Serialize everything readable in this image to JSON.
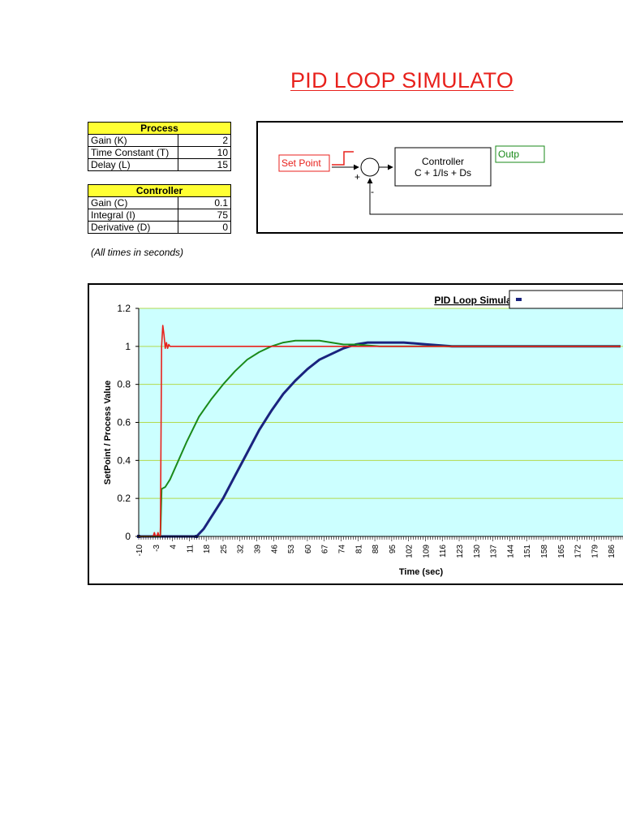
{
  "page": {
    "title": "PID LOOP SIMULATO",
    "note": "(All times in seconds)"
  },
  "process_table": {
    "header": "Process",
    "rows": [
      {
        "label": "Gain (K)",
        "value": "2"
      },
      {
        "label": "Time Constant (T)",
        "value": "10"
      },
      {
        "label": "Delay (L)",
        "value": "15"
      }
    ]
  },
  "controller_table": {
    "header": "Controller",
    "rows": [
      {
        "label": "Gain (C)",
        "value": "0.1"
      },
      {
        "label": "Integral (I)",
        "value": "75"
      },
      {
        "label": "Derivative (D)",
        "value": "0"
      }
    ]
  },
  "diagram": {
    "setpoint_label": "Set Point",
    "controller_title": "Controller",
    "controller_formula": "C + 1/Is + Ds",
    "output_label": "Outp",
    "plus_sign": "+",
    "minus_sign": "-",
    "colors": {
      "setpoint": "#e8211c",
      "output": "#1a8a1a"
    }
  },
  "chart_data": {
    "type": "line",
    "title": "PID Loop Simulation",
    "xlabel": "Time (sec)",
    "ylabel": "SetPoint / Process Value",
    "ylim": [
      0,
      1.2
    ],
    "yticks": [
      "0",
      "0.2",
      "0.4",
      "0.6",
      "0.8",
      "1",
      "1.2"
    ],
    "xticks": [
      "-10",
      "-3",
      "4",
      "11",
      "18",
      "25",
      "32",
      "39",
      "46",
      "53",
      "60",
      "67",
      "74",
      "81",
      "88",
      "95",
      "102",
      "109",
      "116",
      "123",
      "130",
      "137",
      "144",
      "151",
      "158",
      "165",
      "172",
      "179",
      "186"
    ],
    "grid": true,
    "plot_background": "#ccffff",
    "legend_position": "top-right",
    "series": [
      {
        "color": "#e8211c",
        "points": [
          [
            -10,
            0
          ],
          [
            -4,
            0
          ],
          [
            -3.5,
            0.02
          ],
          [
            -3,
            0
          ],
          [
            -2.5,
            0
          ],
          [
            -2,
            0.02
          ],
          [
            -1.5,
            0
          ],
          [
            -1,
            0
          ],
          [
            -0.5,
            1.0
          ],
          [
            0,
            1.11
          ],
          [
            0.5,
            1.06
          ],
          [
            1,
            0.99
          ],
          [
            1.5,
            1.02
          ],
          [
            2,
            0.99
          ],
          [
            2.5,
            1.01
          ],
          [
            3,
            1.0
          ],
          [
            5,
            1.0
          ],
          [
            190,
            1.0
          ]
        ]
      },
      {
        "color": "#1a8a1a",
        "points": [
          [
            -10,
            0
          ],
          [
            -1,
            0
          ],
          [
            -0.5,
            0.25
          ],
          [
            1,
            0.26
          ],
          [
            3,
            0.3
          ],
          [
            10,
            0.5
          ],
          [
            15,
            0.63
          ],
          [
            20,
            0.72
          ],
          [
            25,
            0.8
          ],
          [
            30,
            0.87
          ],
          [
            35,
            0.93
          ],
          [
            40,
            0.97
          ],
          [
            45,
            1.0
          ],
          [
            50,
            1.02
          ],
          [
            55,
            1.03
          ],
          [
            60,
            1.03
          ],
          [
            65,
            1.03
          ],
          [
            70,
            1.02
          ],
          [
            75,
            1.01
          ],
          [
            80,
            1.01
          ],
          [
            90,
            1.0
          ],
          [
            100,
            1.0
          ],
          [
            110,
            1.0
          ],
          [
            120,
            1.0
          ],
          [
            150,
            1.0
          ],
          [
            190,
            1.0
          ]
        ]
      },
      {
        "color": "#1a237e",
        "points": [
          [
            -10,
            0
          ],
          [
            14,
            0
          ],
          [
            17,
            0.04
          ],
          [
            20,
            0.1
          ],
          [
            25,
            0.2
          ],
          [
            30,
            0.32
          ],
          [
            35,
            0.44
          ],
          [
            40,
            0.56
          ],
          [
            45,
            0.66
          ],
          [
            50,
            0.75
          ],
          [
            55,
            0.82
          ],
          [
            60,
            0.88
          ],
          [
            65,
            0.93
          ],
          [
            70,
            0.96
          ],
          [
            75,
            0.99
          ],
          [
            80,
            1.01
          ],
          [
            85,
            1.02
          ],
          [
            90,
            1.02
          ],
          [
            95,
            1.02
          ],
          [
            100,
            1.02
          ],
          [
            110,
            1.01
          ],
          [
            120,
            1.0
          ],
          [
            140,
            1.0
          ],
          [
            160,
            1.0
          ],
          [
            190,
            1.0
          ]
        ]
      }
    ]
  }
}
